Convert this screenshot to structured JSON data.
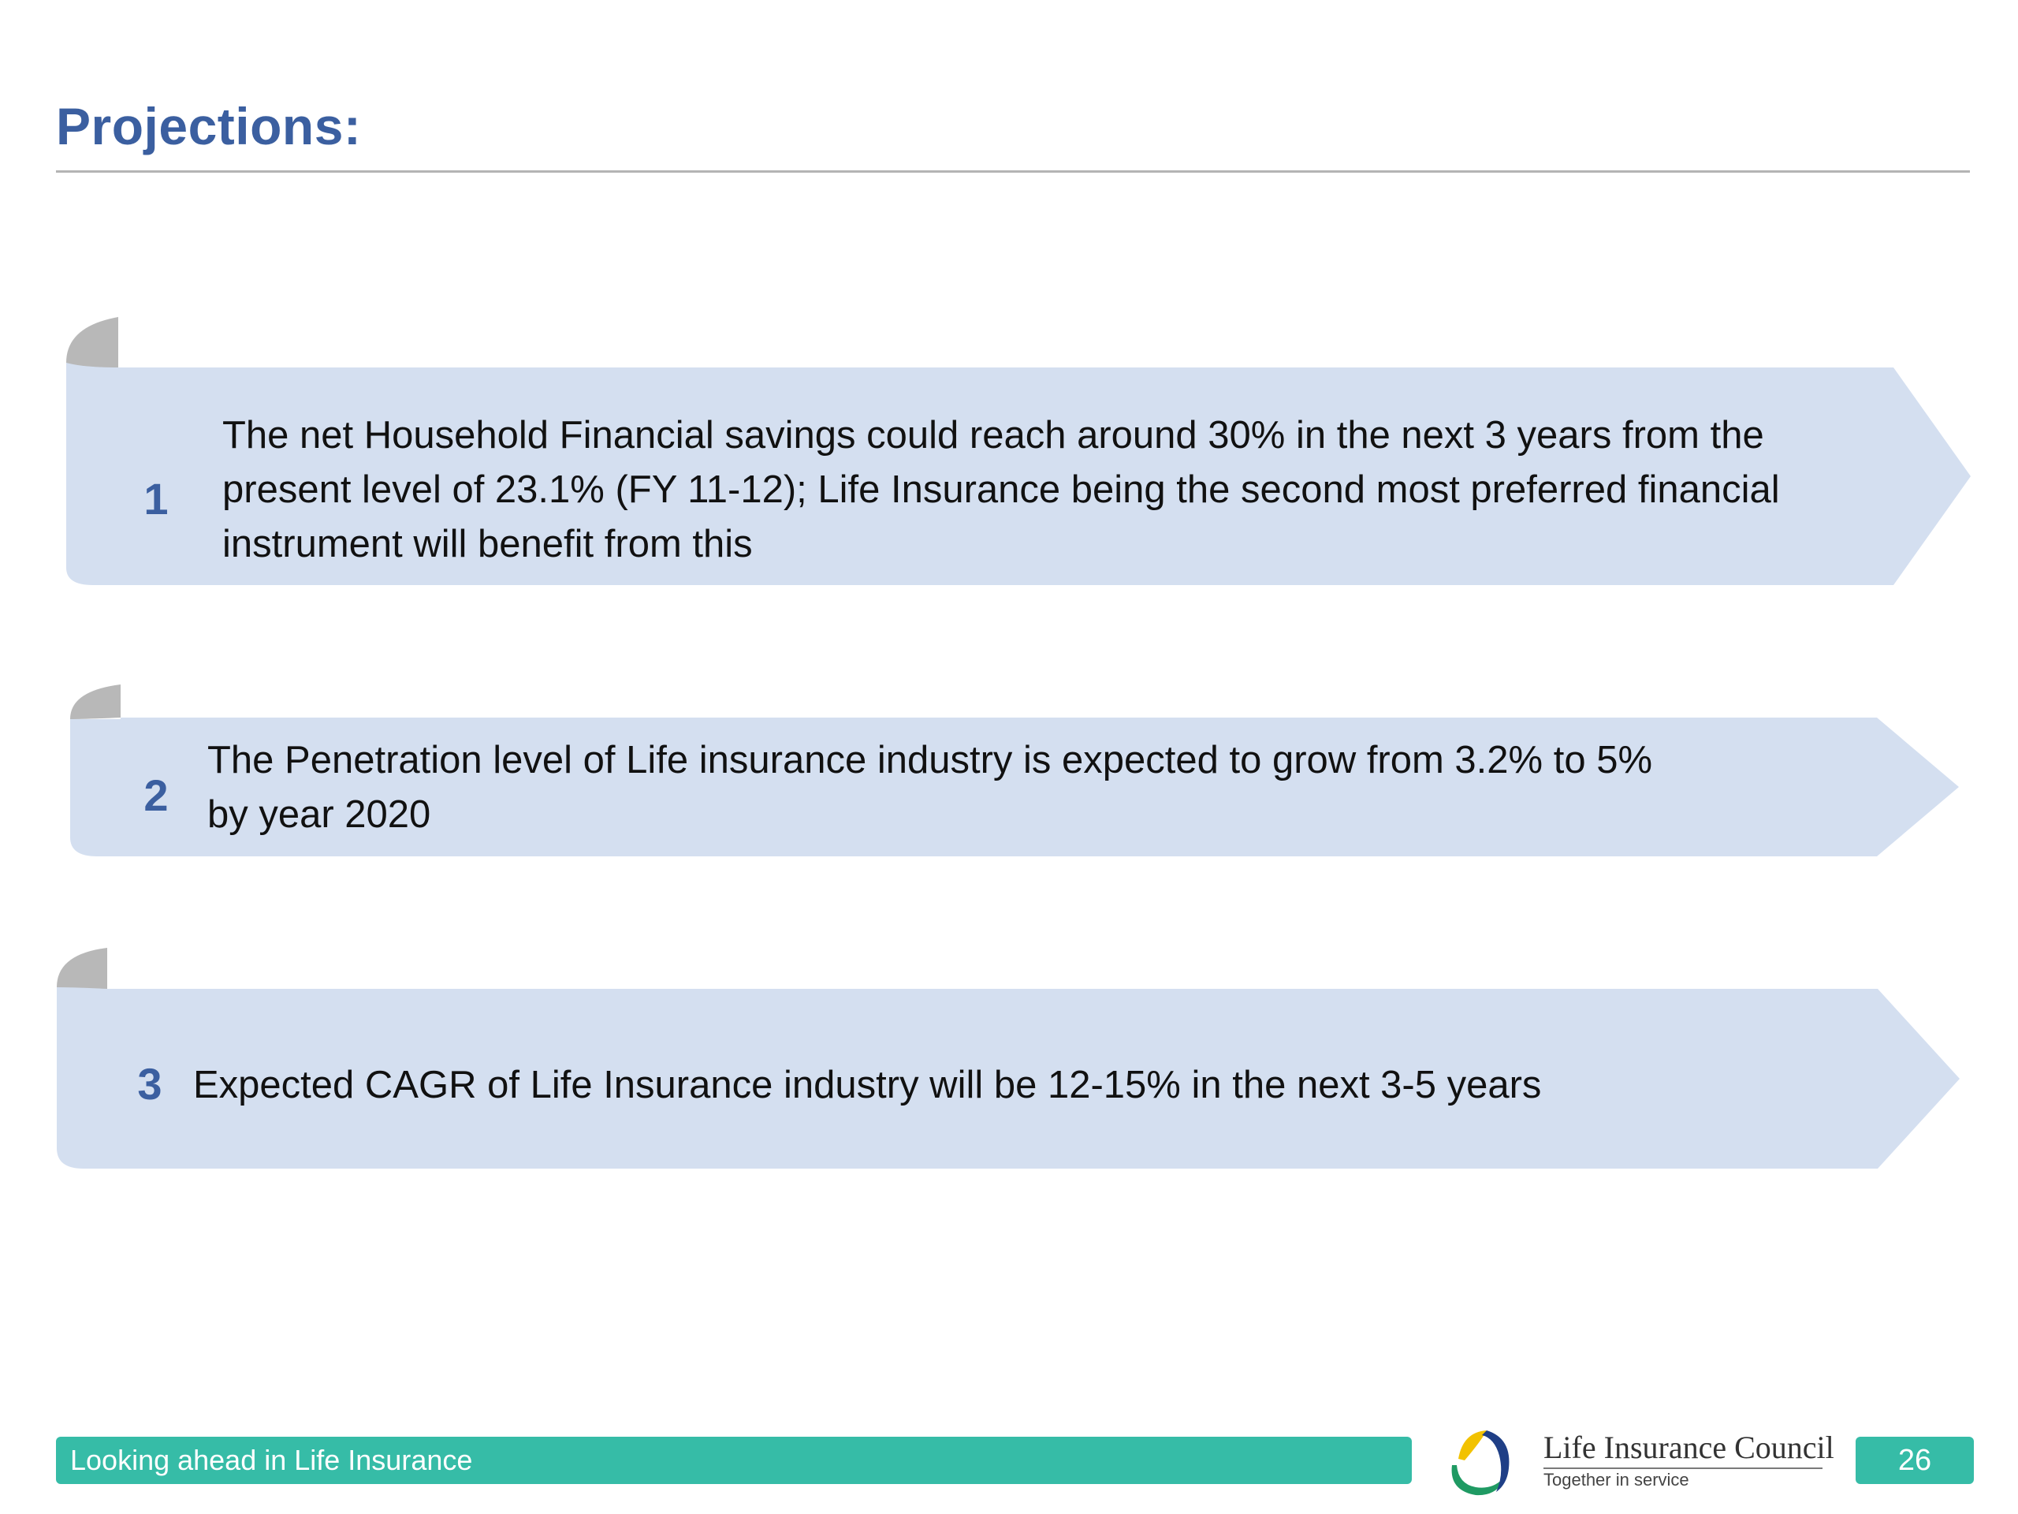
{
  "slide": {
    "title": "Projections:",
    "colors": {
      "title": "#3b5fa0",
      "banner_fill": "#d4dff0",
      "banner_curl": "#b8b8b8",
      "footer_accent": "#36bca7",
      "text": "#111111"
    }
  },
  "projections": [
    {
      "number": "1",
      "lines": [
        "The net Household Financial savings could reach around 30% in the next 3 years from the",
        "present level of 23.1% (FY 11-12); Life Insurance being the second most preferred financial",
        "instrument will benefit from this"
      ]
    },
    {
      "number": "2",
      "lines": [
        "The Penetration level of Life insurance industry is expected to grow from 3.2% to 5%",
        "by year 2020"
      ]
    },
    {
      "number": "3",
      "lines": [
        "Expected CAGR of Life Insurance industry will be 12-15% in the next 3-5 years"
      ]
    }
  ],
  "footer": {
    "caption": "Looking ahead in Life Insurance",
    "logo_name": "Life Insurance Council",
    "logo_tagline": "Together in service",
    "logo_icon": "life-insurance-council-logo-icon",
    "page_number": "26"
  }
}
